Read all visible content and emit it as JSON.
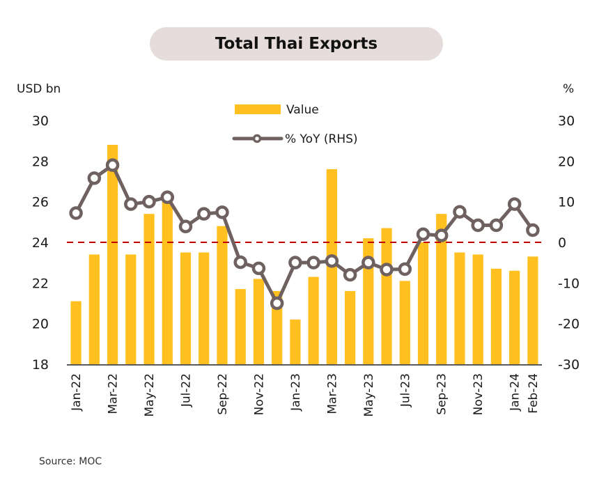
{
  "chart_data": {
    "type": "bar",
    "title": "Total Thai Exports",
    "ylabel_left": "USD bn",
    "ylabel_right": "%",
    "ylim_left": [
      18,
      30
    ],
    "yticks_left": [
      "18",
      "20",
      "22",
      "24",
      "26",
      "28",
      "30"
    ],
    "ylim_right": [
      -30,
      30
    ],
    "yticks_right": [
      "-30",
      "-20",
      "-10",
      "0",
      "10",
      "20",
      "30"
    ],
    "reference_line": {
      "axis": "right",
      "value": 0,
      "style": "dashed",
      "color": "#c00000"
    },
    "categories": [
      "Jan-22",
      "Feb-22",
      "Mar-22",
      "Apr-22",
      "May-22",
      "Jun-22",
      "Jul-22",
      "Aug-22",
      "Sep-22",
      "Oct-22",
      "Nov-22",
      "Dec-22",
      "Jan-23",
      "Feb-23",
      "Mar-23",
      "Apr-23",
      "May-23",
      "Jun-23",
      "Jul-23",
      "Aug-23",
      "Sep-23",
      "Oct-23",
      "Nov-23",
      "Dec-23",
      "Jan-24",
      "Feb-24"
    ],
    "tick_labels": [
      "Jan-22",
      "",
      "Mar-22",
      "",
      "May-22",
      "",
      "Jul-22",
      "",
      "Sep-22",
      "",
      "Nov-22",
      "",
      "Jan-23",
      "",
      "Mar-23",
      "",
      "May-23",
      "",
      "Jul-23",
      "",
      "Sep-23",
      "",
      "Nov-23",
      "",
      "Jan-24",
      "Feb-24"
    ],
    "series": [
      {
        "name": "Value",
        "type": "bar",
        "axis": "left",
        "color": "#ffc020",
        "values": [
          21.1,
          23.4,
          28.8,
          23.4,
          25.4,
          26.0,
          23.5,
          23.5,
          24.8,
          21.7,
          22.2,
          21.6,
          20.2,
          22.3,
          27.6,
          21.6,
          24.2,
          24.7,
          22.1,
          24.0,
          25.4,
          23.5,
          23.4,
          22.7,
          22.6,
          23.3
        ]
      },
      {
        "name": "% YoY (RHS)",
        "type": "line",
        "axis": "right",
        "color": "#6e6160",
        "values": [
          7.2,
          15.8,
          19.0,
          9.4,
          10.0,
          11.1,
          3.9,
          7.0,
          7.4,
          -4.9,
          -6.4,
          -15.0,
          -5.0,
          -5.0,
          -4.6,
          -8.0,
          -5.0,
          -6.7,
          -6.6,
          2.0,
          1.7,
          7.5,
          4.2,
          4.2,
          9.4,
          3.0
        ]
      }
    ],
    "legend": {
      "placement": "top-center",
      "entries": [
        "Value",
        "% YoY (RHS)"
      ]
    }
  },
  "labels": {
    "title": "Total Thai Exports",
    "left_unit": "USD bn",
    "right_unit": "%",
    "source": "Source:  MOC"
  }
}
